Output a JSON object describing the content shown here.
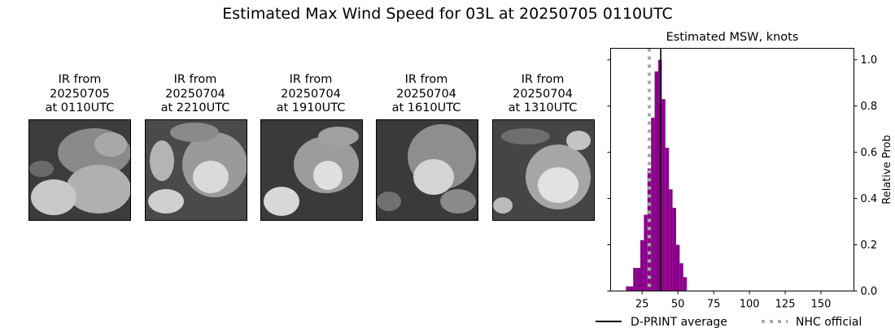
{
  "figure": {
    "title": "Estimated Max Wind Speed for 03L at 20250705 0110UTC"
  },
  "ir_panels": [
    {
      "caption": "IR from\n20250705\nat 0110UTC"
    },
    {
      "caption": "IR from\n20250704\nat 2210UTC"
    },
    {
      "caption": "IR from\n20250704\nat 1910UTC"
    },
    {
      "caption": "IR from\n20250704\nat 1610UTC"
    },
    {
      "caption": "IR from\n20250704\nat 1310UTC"
    }
  ],
  "colors": {
    "bar": "#8b008b",
    "dprint": "#000000",
    "nhc": "#a9a9a9"
  },
  "chart_data": {
    "type": "bar",
    "title": "Estimated MSW, knots",
    "xlabel": "",
    "ylabel": "Relative Prob",
    "xlim": [
      3,
      173
    ],
    "ylim": [
      0,
      1.05
    ],
    "xticks": [
      25,
      50,
      75,
      100,
      125,
      150
    ],
    "yticks": [
      0.0,
      0.2,
      0.4,
      0.6,
      0.8,
      1.0
    ],
    "y_axis_side": "right",
    "grid": false,
    "bin_width": 2.5,
    "bins": [
      {
        "x": 15,
        "value": 0.02
      },
      {
        "x": 17.5,
        "value": 0.02
      },
      {
        "x": 20,
        "value": 0.1
      },
      {
        "x": 22.5,
        "value": 0.1
      },
      {
        "x": 25,
        "value": 0.22
      },
      {
        "x": 27.5,
        "value": 0.33
      },
      {
        "x": 30,
        "value": 0.53
      },
      {
        "x": 32.5,
        "value": 0.75
      },
      {
        "x": 35,
        "value": 0.95
      },
      {
        "x": 37.5,
        "value": 1.0
      },
      {
        "x": 40,
        "value": 0.83
      },
      {
        "x": 42.5,
        "value": 0.62
      },
      {
        "x": 45,
        "value": 0.44
      },
      {
        "x": 47.5,
        "value": 0.36
      },
      {
        "x": 50,
        "value": 0.2
      },
      {
        "x": 52.5,
        "value": 0.12
      },
      {
        "x": 55,
        "value": 0.06
      }
    ],
    "lines": [
      {
        "name": "D-PRINT average",
        "x": 38,
        "style": "solid"
      },
      {
        "name": "NHC official",
        "x": 30,
        "style": "dotted"
      }
    ],
    "legend_placement": "bottom"
  }
}
